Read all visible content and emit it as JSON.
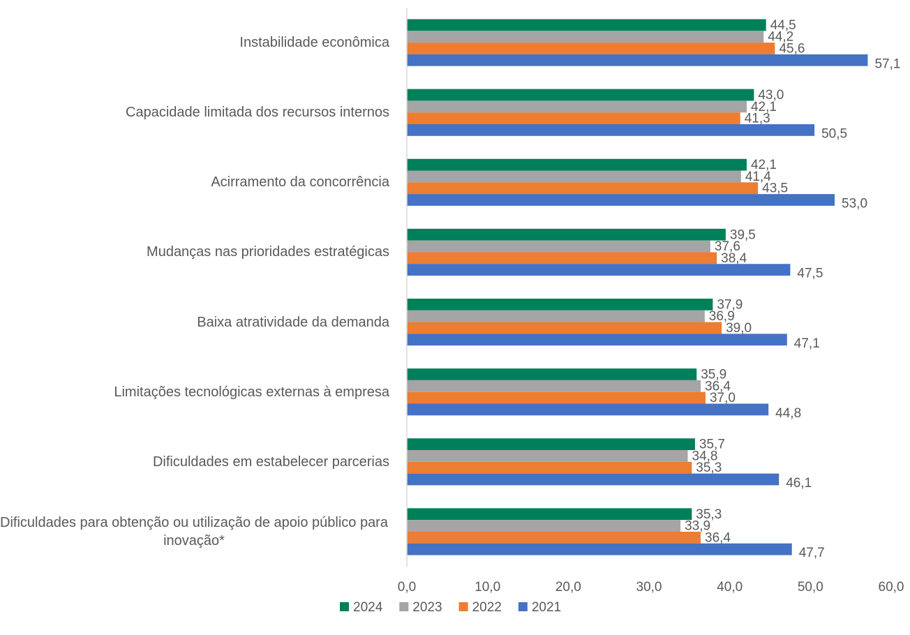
{
  "chart_data": {
    "type": "barh",
    "categories": [
      "Instabilidade econômica",
      "Capacidade limitada dos recursos internos",
      "Acirramento da concorrência",
      "Mudanças nas prioridades estratégicas",
      "Baixa atratividade da demanda",
      "Limitações tecnológicas externas à empresa",
      "Dificuldades em estabelecer parcerias",
      "Dificuldades para obtenção ou utilização de apoio público para inovação*"
    ],
    "series": [
      {
        "name": "2024",
        "color": "#00805a",
        "values": [
          44.5,
          43.0,
          42.1,
          39.5,
          37.9,
          35.9,
          35.7,
          35.3
        ],
        "value_labels": [
          "44,5",
          "43,0",
          "42,1",
          "39,5",
          "37,9",
          "35,9",
          "35,7",
          "35,3"
        ]
      },
      {
        "name": "2023",
        "color": "#a5a5a5",
        "values": [
          44.2,
          42.1,
          41.4,
          37.6,
          36.9,
          36.4,
          34.8,
          33.9
        ],
        "value_labels": [
          "44,2",
          "42,1",
          "41,4",
          "37,6",
          "36,9",
          "36,4",
          "34,8",
          "33,9"
        ]
      },
      {
        "name": "2022",
        "color": "#ed7d31",
        "values": [
          45.6,
          41.3,
          43.5,
          38.4,
          39.0,
          37.0,
          35.3,
          36.4
        ],
        "value_labels": [
          "45,6",
          "41,3",
          "43,5",
          "38,4",
          "39,0",
          "37,0",
          "35,3",
          "36,4"
        ]
      },
      {
        "name": "2021",
        "color": "#4472c4",
        "values": [
          57.1,
          50.5,
          53.0,
          47.5,
          47.1,
          44.8,
          46.1,
          47.7
        ],
        "value_labels": [
          "57,1",
          "50,5",
          "53,0",
          "47,5",
          "47,1",
          "44,8",
          "46,1",
          "47,7"
        ]
      }
    ],
    "xlim": [
      0,
      60
    ],
    "xticks": [
      {
        "value": 0,
        "label": "0,0"
      },
      {
        "value": 10,
        "label": "10,0"
      },
      {
        "value": 20,
        "label": "20,0"
      },
      {
        "value": 30,
        "label": "30,0"
      },
      {
        "value": 40,
        "label": "40,0"
      },
      {
        "value": 50,
        "label": "50,0"
      },
      {
        "value": 60,
        "label": "60,0"
      }
    ],
    "grid": false,
    "legend": "bottom"
  }
}
